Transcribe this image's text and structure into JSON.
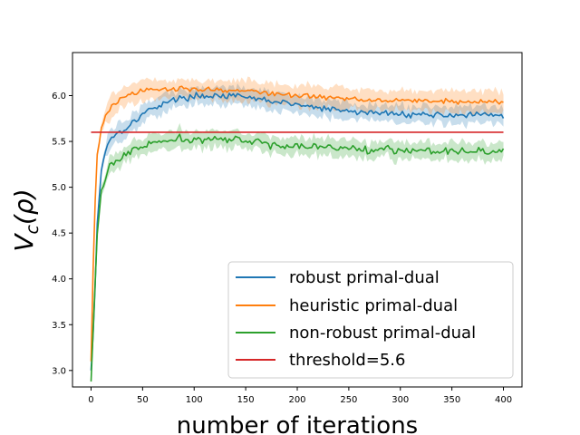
{
  "chart_data": {
    "type": "line",
    "xlabel": "number of iterations",
    "ylabel": "V_c(ρ)",
    "xlim": [
      -18,
      418
    ],
    "ylim": [
      2.82,
      6.47
    ],
    "xticks": [
      0,
      50,
      100,
      150,
      200,
      250,
      300,
      350,
      400
    ],
    "yticks": [
      3.0,
      3.5,
      4.0,
      4.5,
      5.0,
      5.5,
      6.0
    ],
    "grid": false,
    "legend_position": "lower-right",
    "series": [
      {
        "name": "robust primal-dual",
        "color": "#1f77b4",
        "band": true,
        "band_halfwidth": 0.11,
        "noise": 0.03,
        "x": [
          0,
          3,
          6,
          10,
          15,
          20,
          30,
          40,
          50,
          70,
          90,
          110,
          130,
          150,
          170,
          200,
          230,
          260,
          300,
          340,
          370,
          400
        ],
        "mean": [
          3.0,
          3.6,
          4.6,
          5.2,
          5.45,
          5.55,
          5.62,
          5.7,
          5.8,
          5.92,
          5.98,
          6.0,
          6.0,
          5.98,
          5.95,
          5.9,
          5.85,
          5.82,
          5.8,
          5.79,
          5.79,
          5.78
        ]
      },
      {
        "name": "heuristic primal-dual",
        "color": "#ff7f0e",
        "band": true,
        "band_halfwidth": 0.13,
        "noise": 0.025,
        "x": [
          0,
          3,
          6,
          10,
          15,
          20,
          30,
          40,
          50,
          70,
          90,
          110,
          130,
          150,
          170,
          200,
          230,
          260,
          300,
          340,
          370,
          400
        ],
        "mean": [
          3.1,
          4.6,
          5.35,
          5.65,
          5.8,
          5.88,
          5.97,
          6.02,
          6.05,
          6.07,
          6.08,
          6.07,
          6.06,
          6.05,
          6.03,
          6.0,
          5.98,
          5.96,
          5.95,
          5.94,
          5.93,
          5.93
        ]
      },
      {
        "name": "non-robust primal-dual",
        "color": "#2ca02c",
        "band": true,
        "band_halfwidth": 0.11,
        "noise": 0.04,
        "x": [
          0,
          3,
          6,
          10,
          15,
          20,
          30,
          40,
          50,
          70,
          90,
          110,
          130,
          150,
          170,
          200,
          230,
          260,
          300,
          340,
          370,
          400
        ],
        "mean": [
          2.88,
          3.7,
          4.5,
          4.95,
          5.15,
          5.25,
          5.33,
          5.4,
          5.45,
          5.5,
          5.52,
          5.53,
          5.52,
          5.5,
          5.48,
          5.45,
          5.43,
          5.42,
          5.41,
          5.4,
          5.4,
          5.39
        ]
      },
      {
        "name": "threshold=5.6",
        "color": "#d62728",
        "band": false,
        "noise": 0,
        "x": [
          0,
          400
        ],
        "mean": [
          5.6,
          5.6
        ]
      }
    ]
  }
}
